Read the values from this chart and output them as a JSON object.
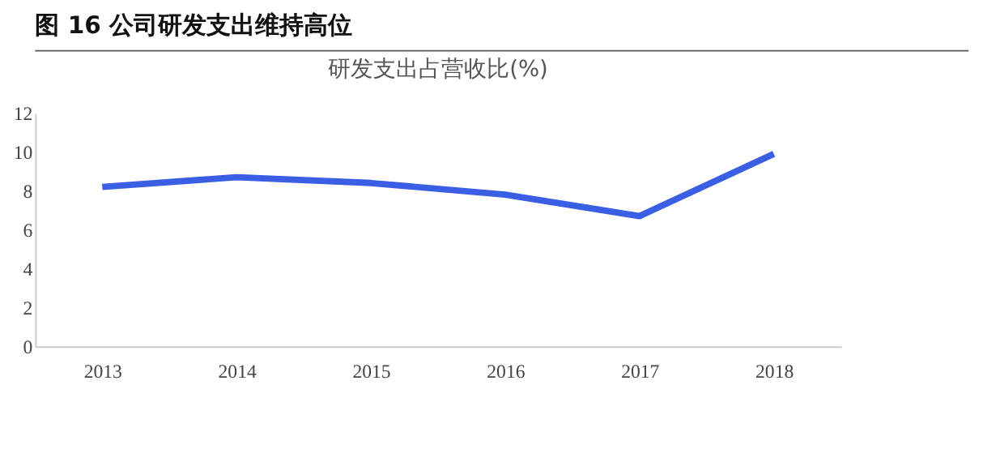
{
  "chart_data": {
    "type": "line",
    "title": "图 16 公司研发支出维持高位",
    "subtitle": "研发支出占营收比(%)",
    "categories": [
      "2013",
      "2014",
      "2015",
      "2016",
      "2017",
      "2018"
    ],
    "series": [
      {
        "color": "#3a5fe5",
        "values": [
          8.2,
          8.7,
          8.4,
          7.8,
          6.7,
          9.9
        ]
      }
    ],
    "ylim": [
      0,
      12
    ],
    "yticks": [
      0,
      2,
      4,
      6,
      8,
      10,
      12
    ],
    "grid": false,
    "legend": false,
    "marker": "none",
    "line_style": "solid"
  }
}
